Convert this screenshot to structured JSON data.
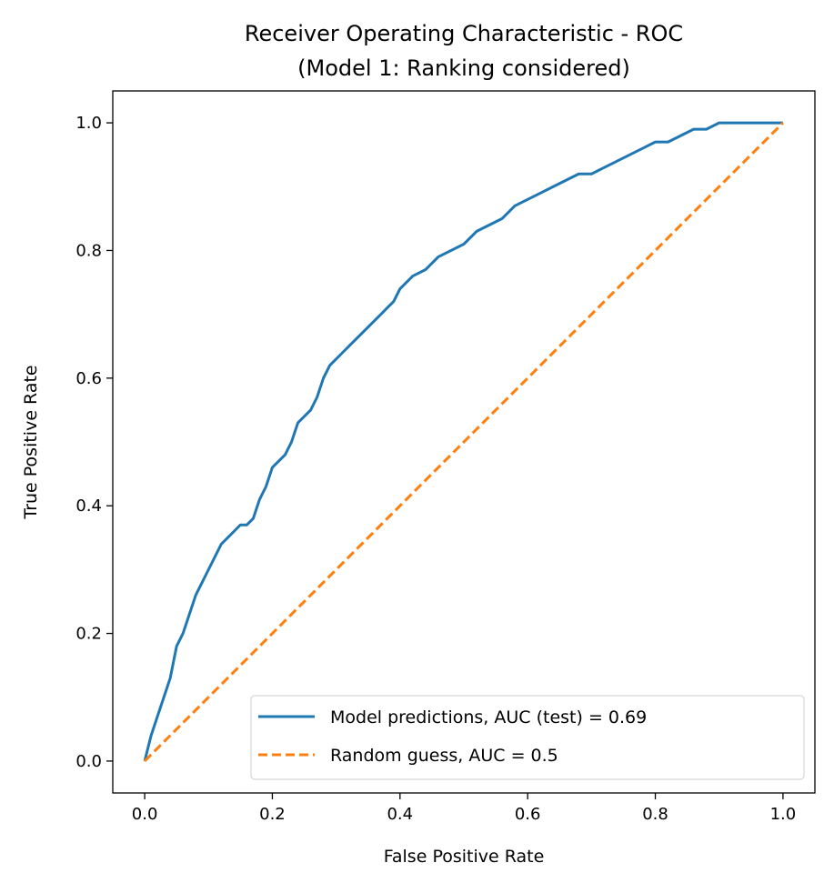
{
  "chart_data": {
    "type": "line",
    "title": "Receiver Operating Characteristic - ROC",
    "subtitle": "(Model 1: Ranking considered)",
    "xlabel": "False Positive Rate",
    "ylabel": "True Positive Rate",
    "xlim": [
      -0.05,
      1.05
    ],
    "ylim": [
      -0.05,
      1.05
    ],
    "xticks": [
      "0.0",
      "0.2",
      "0.4",
      "0.6",
      "0.8",
      "1.0"
    ],
    "yticks": [
      "0.0",
      "0.2",
      "0.4",
      "0.6",
      "0.8",
      "1.0"
    ],
    "grid": false,
    "legend_position": "lower-right",
    "series": [
      {
        "name": "Model predictions, AUC (test) = 0.69",
        "color": "#1f77b4",
        "style": "solid",
        "x": [
          0.0,
          0.005,
          0.01,
          0.02,
          0.03,
          0.04,
          0.05,
          0.06,
          0.07,
          0.08,
          0.09,
          0.1,
          0.11,
          0.12,
          0.13,
          0.14,
          0.15,
          0.16,
          0.17,
          0.18,
          0.19,
          0.2,
          0.21,
          0.22,
          0.23,
          0.24,
          0.25,
          0.26,
          0.27,
          0.28,
          0.29,
          0.3,
          0.31,
          0.32,
          0.33,
          0.34,
          0.35,
          0.36,
          0.37,
          0.38,
          0.39,
          0.4,
          0.42,
          0.44,
          0.46,
          0.48,
          0.5,
          0.52,
          0.54,
          0.56,
          0.58,
          0.6,
          0.62,
          0.64,
          0.66,
          0.68,
          0.7,
          0.72,
          0.74,
          0.76,
          0.78,
          0.8,
          0.82,
          0.84,
          0.86,
          0.88,
          0.9,
          0.92,
          0.94,
          0.96,
          0.98,
          1.0
        ],
        "y": [
          0.0,
          0.02,
          0.04,
          0.07,
          0.1,
          0.13,
          0.18,
          0.2,
          0.23,
          0.26,
          0.28,
          0.3,
          0.32,
          0.34,
          0.35,
          0.36,
          0.37,
          0.37,
          0.38,
          0.41,
          0.43,
          0.46,
          0.47,
          0.48,
          0.5,
          0.53,
          0.54,
          0.55,
          0.57,
          0.6,
          0.62,
          0.63,
          0.64,
          0.65,
          0.66,
          0.67,
          0.68,
          0.69,
          0.7,
          0.71,
          0.72,
          0.74,
          0.76,
          0.77,
          0.79,
          0.8,
          0.81,
          0.83,
          0.84,
          0.85,
          0.87,
          0.88,
          0.89,
          0.9,
          0.91,
          0.92,
          0.92,
          0.93,
          0.94,
          0.95,
          0.96,
          0.97,
          0.97,
          0.98,
          0.99,
          0.99,
          1.0,
          1.0,
          1.0,
          1.0,
          1.0,
          1.0
        ]
      },
      {
        "name": "Random guess, AUC = 0.5",
        "color": "#ff7f0e",
        "style": "dashed",
        "x": [
          0.0,
          1.0
        ],
        "y": [
          0.0,
          1.0
        ]
      }
    ]
  }
}
